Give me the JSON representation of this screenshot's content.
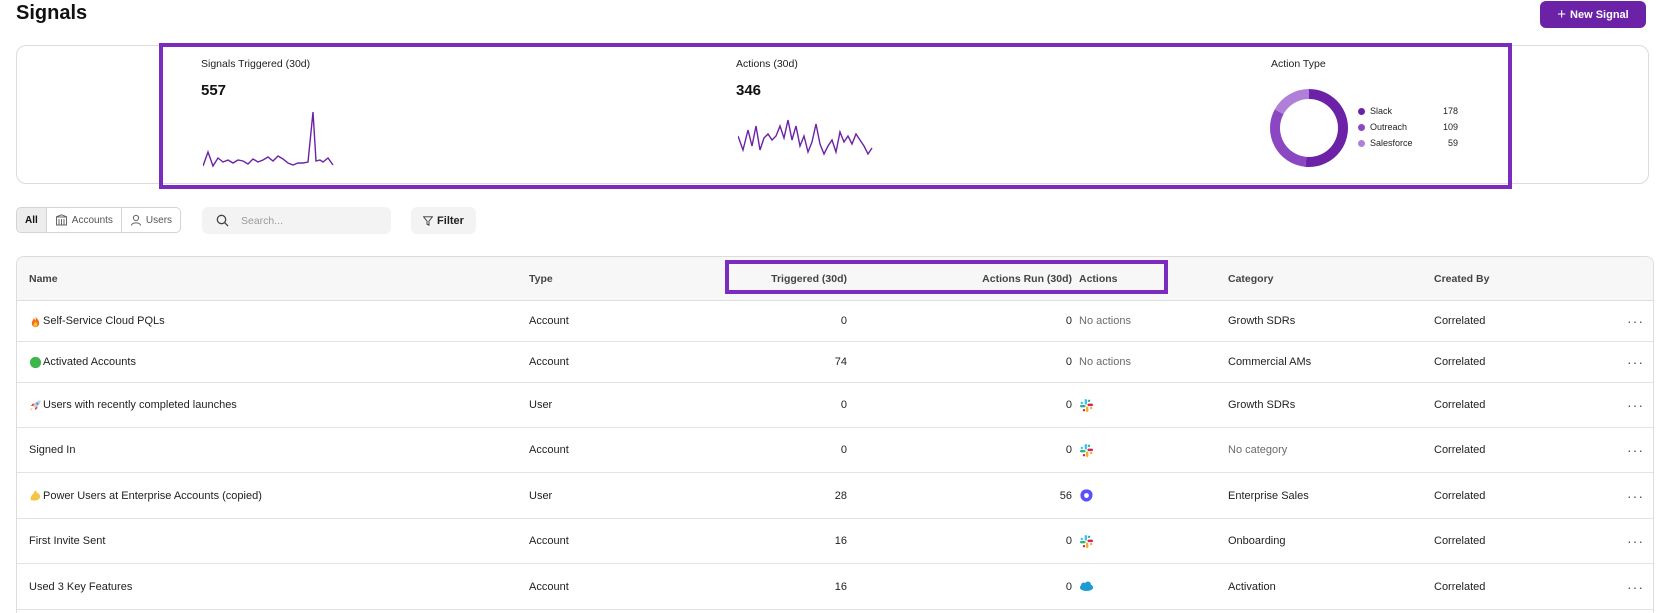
{
  "page": {
    "title": "Signals",
    "new_button_label": "New Signal"
  },
  "stats": {
    "signals_triggered": {
      "label": "Signals Triggered (30d)",
      "value": "557"
    },
    "actions": {
      "label": "Actions (30d)",
      "value": "346"
    },
    "action_type": {
      "label": "Action Type",
      "items": [
        {
          "name": "Slack",
          "value": "178",
          "color": "#6c22a6"
        },
        {
          "name": "Outreach",
          "value": "109",
          "color": "#8b47c2"
        },
        {
          "name": "Salesforce",
          "value": "59",
          "color": "#b07fd8"
        }
      ]
    }
  },
  "toolbar": {
    "segments": [
      {
        "label": "All",
        "icon": "",
        "active": true
      },
      {
        "label": "Accounts",
        "icon": "building-icon",
        "active": false
      },
      {
        "label": "Users",
        "icon": "user-icon",
        "active": false
      }
    ],
    "search_placeholder": "Search...",
    "filter_label": "Filter"
  },
  "table": {
    "headers": {
      "name": "Name",
      "type": "Type",
      "triggered": "Triggered (30d)",
      "actions_run": "Actions Run (30d)",
      "actions": "Actions",
      "category": "Category",
      "created_by": "Created By"
    },
    "rows": [
      {
        "emoji": "fire-icon",
        "name": "Self-Service Cloud PQLs",
        "type": "Account",
        "triggered": "0",
        "actions_run": "0",
        "actions_text": "No actions",
        "actions_icon": "",
        "category": "Growth SDRs",
        "category_muted": false,
        "created_by": "Correlated"
      },
      {
        "emoji": "green-circle-icon",
        "name": "Activated Accounts",
        "type": "Account",
        "triggered": "74",
        "actions_run": "0",
        "actions_text": "No actions",
        "actions_icon": "",
        "category": "Commercial AMs",
        "category_muted": false,
        "created_by": "Correlated"
      },
      {
        "emoji": "rocket-icon",
        "name": "Users with recently completed launches",
        "type": "User",
        "triggered": "0",
        "actions_run": "0",
        "actions_text": "",
        "actions_icon": "slack-icon",
        "category": "Growth SDRs",
        "category_muted": false,
        "created_by": "Correlated"
      },
      {
        "emoji": "",
        "name": "Signed In",
        "type": "Account",
        "triggered": "0",
        "actions_run": "0",
        "actions_text": "",
        "actions_icon": "slack-icon",
        "category": "No category",
        "category_muted": true,
        "created_by": "Correlated"
      },
      {
        "emoji": "flexed-biceps-icon",
        "name": "Power Users at Enterprise Accounts (copied)",
        "type": "User",
        "triggered": "28",
        "actions_run": "56",
        "actions_text": "",
        "actions_icon": "outreach-icon",
        "category": "Enterprise Sales",
        "category_muted": false,
        "created_by": "Correlated"
      },
      {
        "emoji": "",
        "name": "First Invite Sent",
        "type": "Account",
        "triggered": "16",
        "actions_run": "0",
        "actions_text": "",
        "actions_icon": "slack-icon",
        "category": "Onboarding",
        "category_muted": false,
        "created_by": "Correlated"
      },
      {
        "emoji": "",
        "name": "Used 3 Key Features",
        "type": "Account",
        "triggered": "16",
        "actions_run": "0",
        "actions_text": "",
        "actions_icon": "salesforce-icon",
        "category": "Activation",
        "category_muted": false,
        "created_by": "Correlated"
      }
    ]
  },
  "colors": {
    "accent": "#6c22a6",
    "highlight": "#7a2cbf"
  }
}
